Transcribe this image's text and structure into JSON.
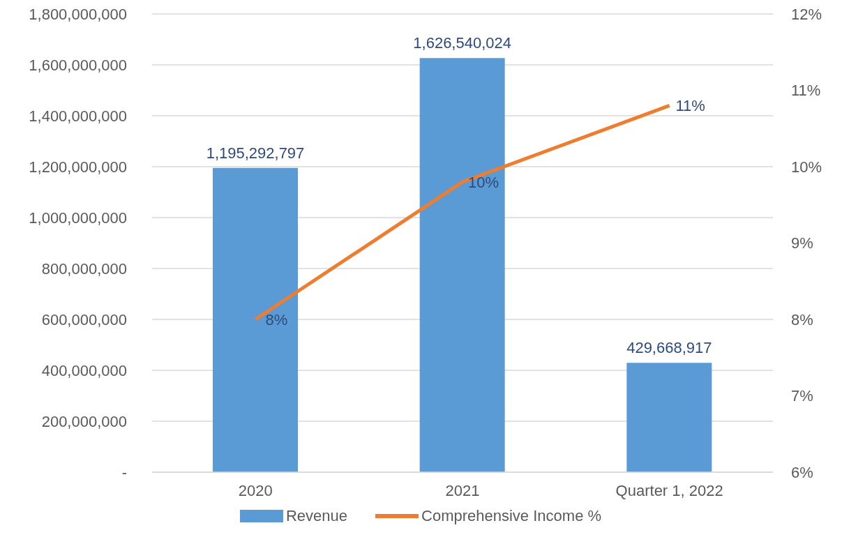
{
  "chart_data": {
    "type": "bar",
    "categories": [
      "2020",
      "2021",
      "Quarter 1, 2022"
    ],
    "series": [
      {
        "name": "Revenue",
        "color": "#5b9bd5",
        "values": [
          1195292797,
          1626540024,
          429668917
        ],
        "value_labels": [
          "1,195,292,797",
          "1,626,540,024",
          "429,668,917"
        ]
      },
      {
        "name": "Comprehensive Income %",
        "type": "line",
        "axis": "y2",
        "color": "#ed7d31",
        "values": [
          8,
          9.8,
          10.8
        ],
        "value_labels": [
          "8%",
          "10%",
          "11%"
        ]
      }
    ],
    "ylim": [
      0,
      1800000000
    ],
    "yticks": [
      {
        "value": 0,
        "label": "-"
      },
      {
        "value": 200000000,
        "label": "200,000,000"
      },
      {
        "value": 400000000,
        "label": "400,000,000"
      },
      {
        "value": 600000000,
        "label": "600,000,000"
      },
      {
        "value": 800000000,
        "label": "800,000,000"
      },
      {
        "value": 1000000000,
        "label": "1,000,000,000"
      },
      {
        "value": 1200000000,
        "label": "1,200,000,000"
      },
      {
        "value": 1400000000,
        "label": "1,400,000,000"
      },
      {
        "value": 1600000000,
        "label": "1,600,000,000"
      },
      {
        "value": 1800000000,
        "label": "1,800,000,000"
      }
    ],
    "y2lim": [
      6,
      12
    ],
    "y2ticks": [
      {
        "value": 6,
        "label": "6%"
      },
      {
        "value": 7,
        "label": "7%"
      },
      {
        "value": 8,
        "label": "8%"
      },
      {
        "value": 9,
        "label": "9%"
      },
      {
        "value": 10,
        "label": "10%"
      },
      {
        "value": 11,
        "label": "11%"
      },
      {
        "value": 12,
        "label": "12%"
      }
    ],
    "grid": "y",
    "legend": "bottom",
    "marker": "none"
  }
}
